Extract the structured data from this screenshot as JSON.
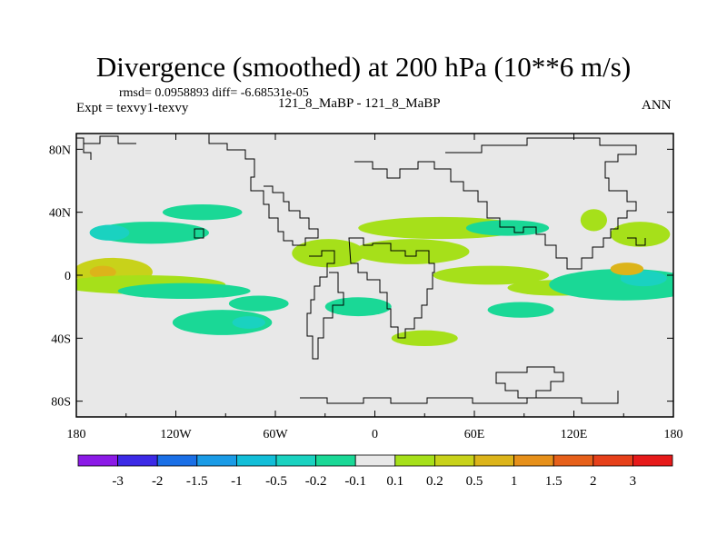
{
  "title": "Divergence (smoothed) at 200 hPa (10**6 m/s)",
  "stats_line": "rmsd= 0.0958893 diff= -6.68531e-05",
  "expt_line": "Expt = texvy1-texvy",
  "case_line": "121_8_MaBP - 121_8_MaBP",
  "season": "ANN",
  "chart_data": {
    "type": "heatmap",
    "title": "Divergence (smoothed) at 200 hPa (10**6 m/s)",
    "projection": "cylindrical equidistant",
    "xlim": [
      -180,
      180
    ],
    "ylim": [
      -90,
      90
    ],
    "x_ticks": [
      {
        "value": -180,
        "label": "180"
      },
      {
        "value": -120,
        "label": "120W"
      },
      {
        "value": -60,
        "label": "60W"
      },
      {
        "value": 0,
        "label": "0"
      },
      {
        "value": 60,
        "label": "60E"
      },
      {
        "value": 120,
        "label": "120E"
      },
      {
        "value": 180,
        "label": "180"
      }
    ],
    "y_ticks": [
      {
        "value": 80,
        "label": "80N"
      },
      {
        "value": 40,
        "label": "40N"
      },
      {
        "value": 0,
        "label": "0"
      },
      {
        "value": -40,
        "label": "40S"
      },
      {
        "value": -80,
        "label": "80S"
      }
    ],
    "colorbar": {
      "levels": [
        "-3",
        "-2",
        "-1.5",
        "-1",
        "-0.5",
        "-0.2",
        "-0.1",
        "0.1",
        "0.2",
        "0.5",
        "1",
        "1.5",
        "2",
        "3"
      ],
      "colors": [
        "#8b1ae6",
        "#3c2ae6",
        "#1a6fe6",
        "#1a9be6",
        "#12bed8",
        "#1ad2c0",
        "#1ad896",
        "#e8e8e8",
        "#a6e01a",
        "#c8d21a",
        "#dcb41a",
        "#e6901a",
        "#e6601a",
        "#e6401a",
        "#e61a1a"
      ]
    },
    "fields": [
      {
        "lon": -158,
        "lat": 2,
        "dlon": 24,
        "dlat": 9,
        "level": 9
      },
      {
        "lon": -164,
        "lat": 2,
        "dlon": 8,
        "dlat": 4,
        "level": 10
      },
      {
        "lon": -140,
        "lat": -6,
        "dlon": 50,
        "dlat": 6,
        "level": 8
      },
      {
        "lon": -115,
        "lat": -10,
        "dlon": 40,
        "dlat": 5,
        "level": 6
      },
      {
        "lon": -135,
        "lat": 27,
        "dlon": 35,
        "dlat": 7,
        "level": 6
      },
      {
        "lon": -160,
        "lat": 27,
        "dlon": 12,
        "dlat": 5,
        "level": 5
      },
      {
        "lon": -104,
        "lat": 40,
        "dlon": 24,
        "dlat": 5,
        "level": 6
      },
      {
        "lon": -92,
        "lat": -30,
        "dlon": 30,
        "dlat": 8,
        "level": 6
      },
      {
        "lon": -76,
        "lat": -30,
        "dlon": 10,
        "dlat": 4,
        "level": 5
      },
      {
        "lon": -28,
        "lat": 14,
        "dlon": 22,
        "dlat": 9,
        "level": 8
      },
      {
        "lon": 40,
        "lat": 30,
        "dlon": 50,
        "dlat": 7,
        "level": 8
      },
      {
        "lon": 22,
        "lat": 15,
        "dlon": 35,
        "dlat": 8,
        "level": 8
      },
      {
        "lon": 70,
        "lat": 0,
        "dlon": 35,
        "dlat": 6,
        "level": 8
      },
      {
        "lon": 110,
        "lat": -8,
        "dlon": 30,
        "dlat": 5,
        "level": 8
      },
      {
        "lon": 150,
        "lat": -6,
        "dlon": 45,
        "dlat": 10,
        "level": 6
      },
      {
        "lon": 162,
        "lat": -2,
        "dlon": 14,
        "dlat": 5,
        "level": 5
      },
      {
        "lon": 152,
        "lat": 4,
        "dlon": 10,
        "dlat": 4,
        "level": 10
      },
      {
        "lon": 160,
        "lat": 26,
        "dlon": 18,
        "dlat": 8,
        "level": 8
      },
      {
        "lon": 132,
        "lat": 35,
        "dlon": 8,
        "dlat": 7,
        "level": 8
      },
      {
        "lon": -10,
        "lat": -20,
        "dlon": 20,
        "dlat": 6,
        "level": 6
      },
      {
        "lon": 80,
        "lat": 30,
        "dlon": 25,
        "dlat": 5,
        "level": 6
      },
      {
        "lon": 88,
        "lat": -22,
        "dlon": 20,
        "dlat": 5,
        "level": 6
      },
      {
        "lon": -70,
        "lat": -18,
        "dlon": 18,
        "dlat": 5,
        "level": 6
      },
      {
        "lon": 30,
        "lat": -40,
        "dlon": 20,
        "dlat": 5,
        "level": 8
      }
    ]
  }
}
